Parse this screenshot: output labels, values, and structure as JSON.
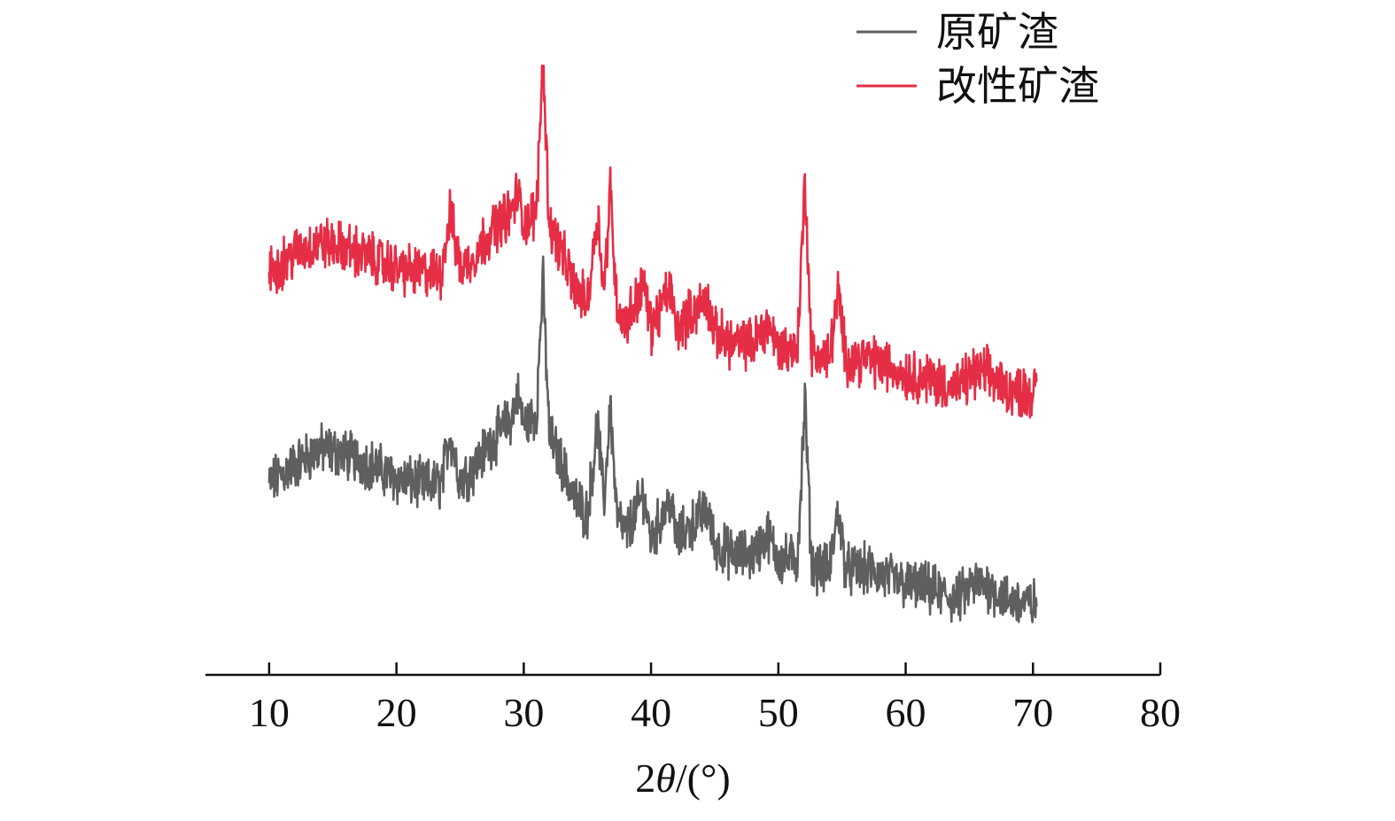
{
  "chart_data": {
    "type": "line",
    "xlabel_prefix": "2",
    "xlabel_theta": "θ",
    "xlabel_suffix": "/(°)",
    "ylabel": "",
    "xlim": [
      5,
      80
    ],
    "x_ticks": [
      10,
      20,
      30,
      40,
      50,
      60,
      70,
      80
    ],
    "y_axis_visible": false,
    "legend_position": "top-right",
    "grid": false,
    "series": [
      {
        "name": "原矿渣",
        "color": "#5f5f5f",
        "x": [
          10,
          12,
          14,
          16,
          18,
          20,
          22,
          23.5,
          24.2,
          25,
          26,
          27,
          28,
          29,
          29.5,
          30,
          31,
          31.5,
          32,
          33,
          34,
          35,
          35.8,
          36.3,
          36.8,
          37.3,
          38,
          39.4,
          40,
          41.5,
          42,
          44.4,
          45,
          46.5,
          48,
          49.2,
          50,
          51.5,
          52.1,
          52.6,
          54,
          54.7,
          55.3,
          57,
          60,
          62,
          64,
          65.3,
          66.4,
          68,
          70.3
        ],
        "y": [
          54,
          58,
          61,
          60,
          58,
          55,
          54,
          54,
          64,
          55,
          57,
          61,
          64,
          67,
          72,
          66,
          68,
          95,
          64,
          58,
          51,
          48,
          66,
          50,
          70,
          48,
          44,
          52,
          43,
          51,
          43,
          49,
          42,
          40,
          40,
          44,
          39,
          39,
          71,
          38,
          37,
          49,
          37,
          37,
          34,
          33,
          31,
          34,
          34,
          31,
          30
        ]
      },
      {
        "name": "改性矿渣",
        "color": "#e52e45",
        "x": [
          10,
          12,
          14,
          16,
          18,
          20,
          22,
          23.5,
          24.2,
          25,
          26,
          27,
          28,
          29,
          29.5,
          30,
          31,
          31.5,
          32,
          33,
          34,
          35,
          35.8,
          36.3,
          36.8,
          37.3,
          38,
          39.4,
          40,
          41.5,
          42,
          44.4,
          45,
          46.5,
          48,
          49.2,
          50,
          51.5,
          52.1,
          52.6,
          54,
          54.7,
          55.3,
          57,
          60,
          62,
          64,
          65.3,
          66.4,
          68,
          70.3
        ],
        "y": [
          96,
          100,
          102,
          101,
          99,
          97,
          96,
          96,
          108,
          97,
          99,
          103,
          106,
          108,
          112,
          106,
          108,
          139,
          106,
          100,
          93,
          90,
          108,
          92,
          113,
          90,
          86,
          94,
          85,
          93,
          85,
          91,
          84,
          82,
          82,
          86,
          81,
          81,
          115,
          80,
          79,
          92,
          79,
          79,
          76,
          75,
          73,
          76,
          76,
          73,
          72
        ]
      }
    ]
  }
}
